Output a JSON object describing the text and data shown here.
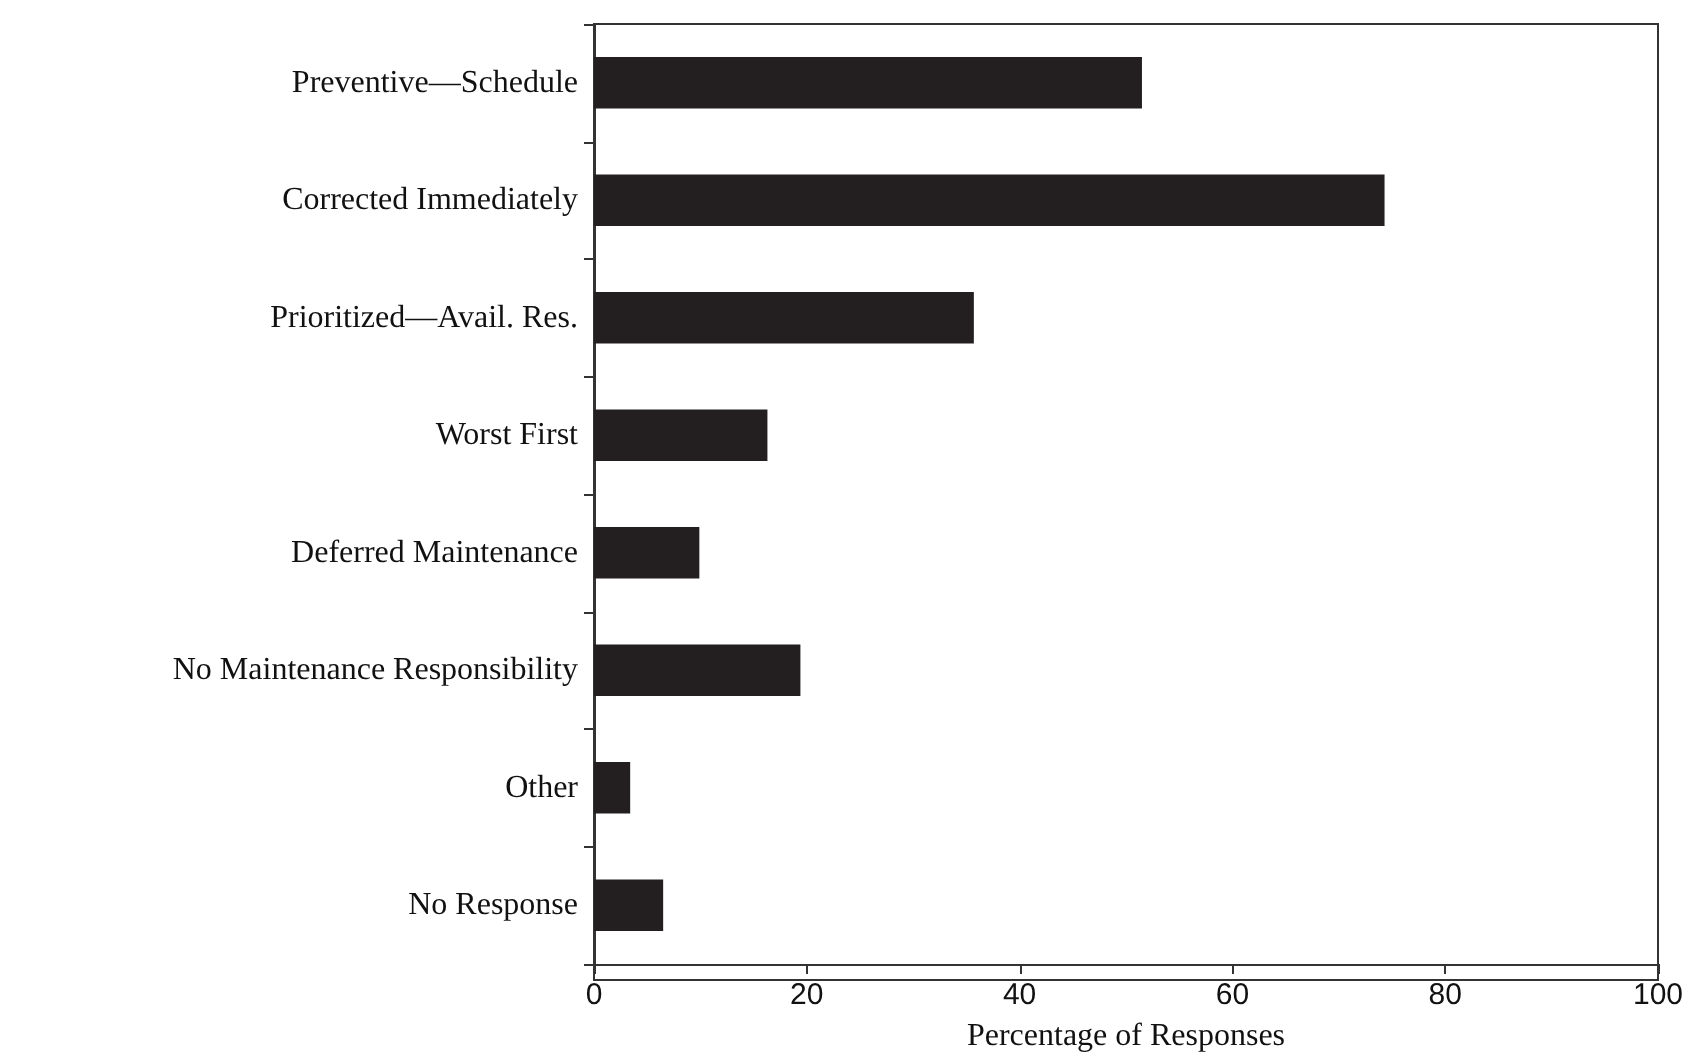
{
  "chart_data": {
    "type": "bar",
    "orientation": "horizontal",
    "xlabel": "Percentage of Responses",
    "categories": [
      "Preventive—Schedule",
      "Corrected Immediately",
      "Prioritized—Avail. Res.",
      "Worst First",
      "Deferred Maintenance",
      "No Maintenance Responsibility",
      "Other",
      "No Response"
    ],
    "values": [
      51.5,
      74.3,
      35.7,
      16.3,
      9.9,
      19.4,
      3.4,
      6.5
    ],
    "color": "#231f20",
    "xlim": [
      0,
      100
    ],
    "xticks": [
      0,
      20,
      40,
      60,
      80,
      100
    ],
    "grid": false
  }
}
